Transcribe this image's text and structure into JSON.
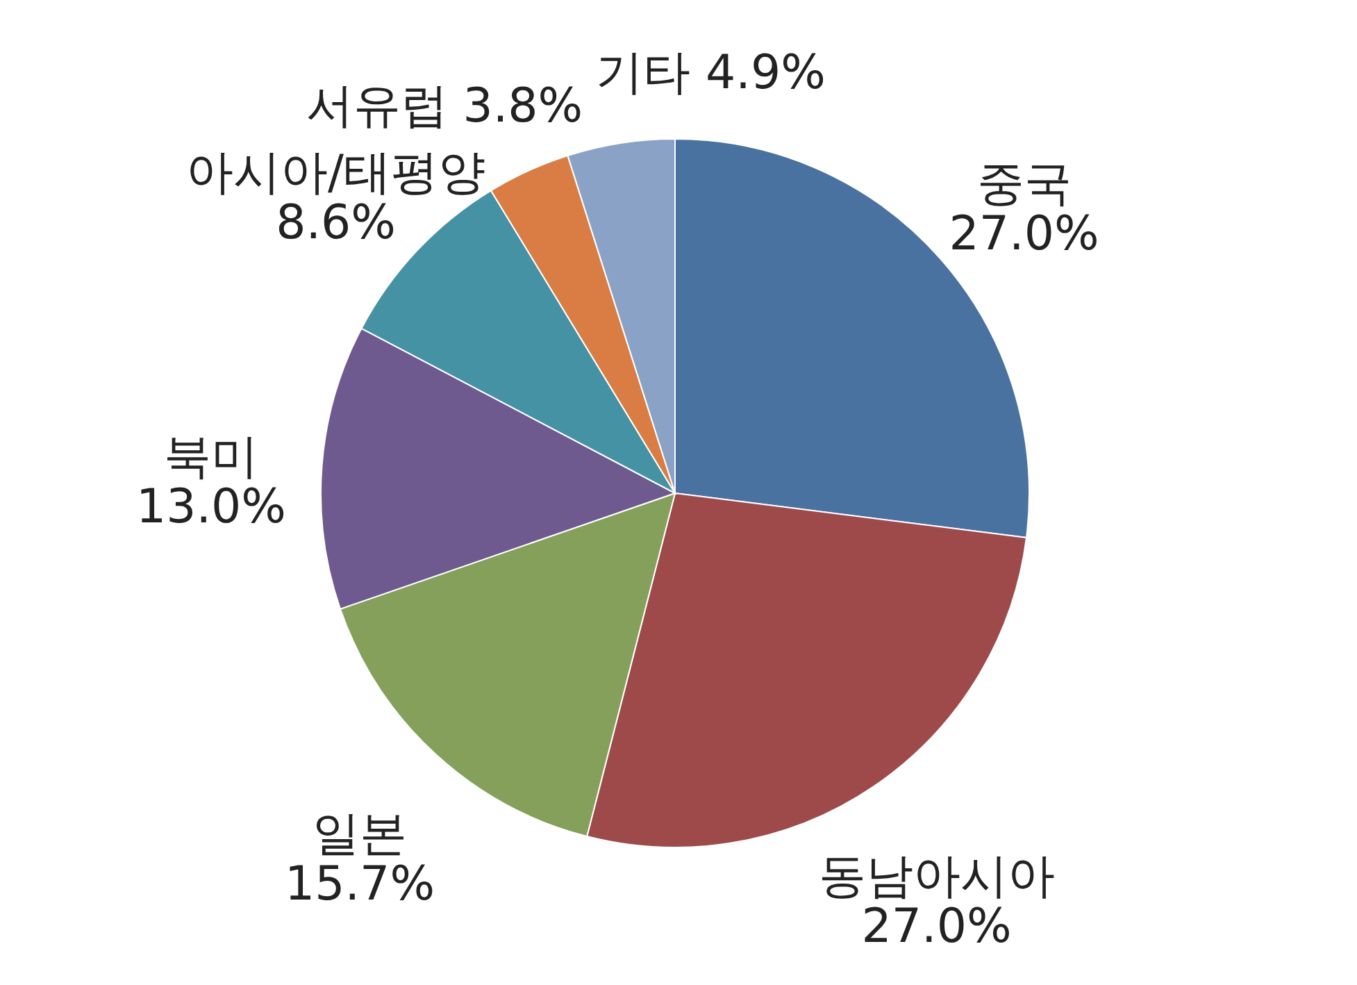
{
  "chart_data": {
    "type": "pie",
    "categories": [
      "중국",
      "동남아시아",
      "일본",
      "북미",
      "아시아/태평양",
      "서유럽",
      "기타"
    ],
    "values": [
      27.0,
      27.0,
      15.7,
      13.0,
      8.6,
      3.8,
      4.9
    ],
    "colors": [
      "#4a72a0",
      "#9e4a4a",
      "#84a05a",
      "#6e5a8e",
      "#4592a4",
      "#d97d45",
      "#8aa2c6"
    ],
    "value_labels": [
      "27.0%",
      "27.0%",
      "15.7%",
      "13.0%",
      "8.6%",
      "3.8%",
      "4.9%"
    ],
    "legend": false
  }
}
